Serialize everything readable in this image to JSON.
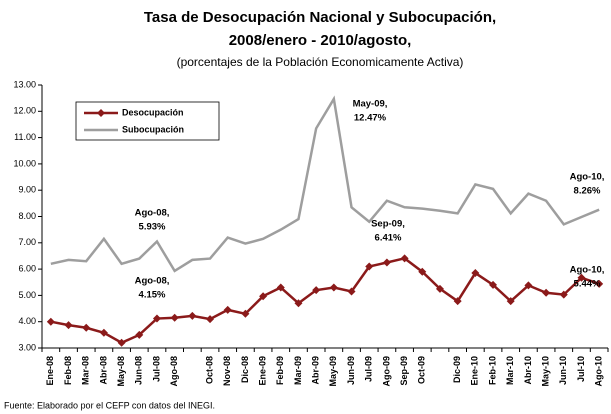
{
  "chart_data": {
    "type": "line",
    "title": "Tasa de Desocupación Nacional y Subocupación,",
    "title_line2": "2008/enero - 2010/agosto,",
    "subtitle": "(porcentajes de la Población Economicamente Activa)",
    "source": "Fuente: Elaborado por el CEFP con datos del INEGI.",
    "categories": [
      "Ene-08",
      "Feb-08",
      "Mar-08",
      "Abr-08",
      "May-08",
      "Jun-08",
      "Jul-08",
      "Ago-08",
      null,
      "Oct-08",
      "Nov-08",
      "Dic-08",
      "Ene-09",
      "Feb-09",
      "Mar-09",
      "Abr-09",
      "May-09",
      "Jun-09",
      "Jul-09",
      "Ago-09",
      "Sep-09",
      "Oct-09",
      null,
      "Dic-09",
      "Ene-10",
      "Feb-10",
      "Mar-10",
      "Abr-10",
      "May-10",
      "Jun-10",
      "Jul-10",
      "Ago-10"
    ],
    "series": [
      {
        "name": "Desocupación",
        "color": "#8b1a1a",
        "marker": "diamond",
        "values": [
          4.0,
          3.87,
          3.77,
          3.58,
          3.2,
          3.5,
          4.12,
          4.15,
          4.22,
          4.1,
          4.45,
          4.3,
          4.97,
          5.3,
          4.7,
          5.2,
          5.3,
          5.15,
          6.1,
          6.25,
          6.41,
          5.9,
          5.25,
          4.78,
          5.85,
          5.4,
          4.78,
          5.38,
          5.1,
          5.03,
          5.67,
          5.44
        ]
      },
      {
        "name": "Subocupación",
        "color": "#9e9e9e",
        "values": [
          6.2,
          6.35,
          6.3,
          7.15,
          6.2,
          6.4,
          7.05,
          5.93,
          6.35,
          6.4,
          7.2,
          6.97,
          7.15,
          7.5,
          7.9,
          11.35,
          12.47,
          8.35,
          7.8,
          8.6,
          8.35,
          8.3,
          8.22,
          8.12,
          9.22,
          9.05,
          8.12,
          8.87,
          8.6,
          7.7,
          7.98,
          8.26
        ]
      }
    ],
    "annotations": [
      [
        "Ago-08,",
        "5.93%"
      ],
      [
        "Ago-08,",
        "4.15%"
      ],
      [
        "May-09,",
        "12.47%"
      ],
      [
        "Sep-09,",
        "6.41%"
      ],
      [
        "Ago-10,",
        "8.26%"
      ],
      [
        "Ago-10,",
        "5.44%"
      ]
    ],
    "ylim": [
      3,
      13
    ],
    "yticks": [
      {
        "value": 3,
        "label": "3.00"
      },
      {
        "value": 4,
        "label": "4.00"
      },
      {
        "value": 5,
        "label": "5.00"
      },
      {
        "value": 6,
        "label": "6.00"
      },
      {
        "value": 7,
        "label": "7.00"
      },
      {
        "value": 8,
        "label": "8.00"
      },
      {
        "value": 9,
        "label": "9.00"
      },
      {
        "value": 10,
        "label": "10.00"
      },
      {
        "value": 11,
        "label": "11.00"
      },
      {
        "value": 12,
        "label": "12.00"
      },
      {
        "value": 13,
        "label": "13.00"
      }
    ],
    "grid": false,
    "legend": "top-left"
  }
}
